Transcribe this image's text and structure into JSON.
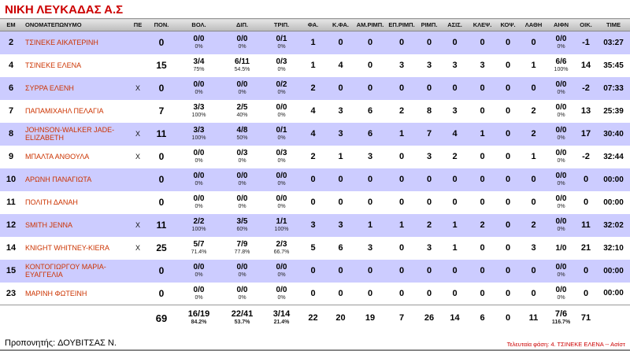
{
  "team": {
    "title": "ΝΙΚΗ ΛΕΥΚΑΔΑΣ Α.Σ"
  },
  "colors": {
    "title_red": "#cc0000",
    "player_name_red": "#cc3300",
    "row_alt_lavender": "#ccccff",
    "header_gray": "#c4c4c4"
  },
  "table": {
    "headers": [
      "ΕΜ",
      "ΟΝΟΜΑΤΕΠΩΝΥΜΟ",
      "ΠΕ",
      "ΠΟΝ.",
      "ΒΟΛ.",
      "ΔΙΠ.",
      "ΤΡΙΠ.",
      "ΦΑ.",
      "Κ.ΦΑ.",
      "ΑΜ.ΡΙΜΠ.",
      "ΕΠ.ΡΙΜΠ.",
      "ΡΙΜΠ.",
      "ΑΣΙΣ.",
      "ΚΛΕΨ.",
      "ΚΟΨ.",
      "ΛΑΘΗ",
      "ΑΙΦΝ",
      "ΟΙΚ.",
      "TIME"
    ],
    "rows": [
      {
        "em": "2",
        "name": "ΤΣΙΝΕΚΕ ΑΙΚΑΤΕΡΙΝΗ",
        "pe": "",
        "pon": "0",
        "vol": [
          "0/0",
          "0%"
        ],
        "dip": [
          "0/0",
          "0%"
        ],
        "trip": [
          "0/1",
          "0%"
        ],
        "fa": "1",
        "kfa": "0",
        "amr": "0",
        "epr": "0",
        "rimp": "0",
        "asis": "0",
        "kleps": "0",
        "kops": "0",
        "lathi": "0",
        "aifn": [
          "0/0",
          "0%"
        ],
        "oik": "-1",
        "time": "03:27"
      },
      {
        "em": "4",
        "name": "ΤΣΙΝΕΚΕ ΕΛΕΝΑ",
        "pe": "",
        "pon": "15",
        "vol": [
          "3/4",
          "75%"
        ],
        "dip": [
          "6/11",
          "54.5%"
        ],
        "trip": [
          "0/3",
          "0%"
        ],
        "fa": "1",
        "kfa": "4",
        "amr": "0",
        "epr": "3",
        "rimp": "3",
        "asis": "3",
        "kleps": "3",
        "kops": "0",
        "lathi": "1",
        "aifn": [
          "6/6",
          "100%"
        ],
        "oik": "14",
        "time": "35:45"
      },
      {
        "em": "6",
        "name": "ΣΥΡΡΑ ΕΛΕΝΗ",
        "pe": "X",
        "pon": "0",
        "vol": [
          "0/0",
          "0%"
        ],
        "dip": [
          "0/0",
          "0%"
        ],
        "trip": [
          "0/2",
          "0%"
        ],
        "fa": "2",
        "kfa": "0",
        "amr": "0",
        "epr": "0",
        "rimp": "0",
        "asis": "0",
        "kleps": "0",
        "kops": "0",
        "lathi": "0",
        "aifn": [
          "0/0",
          "0%"
        ],
        "oik": "-2",
        "time": "07:33"
      },
      {
        "em": "7",
        "name": "ΠΑΠΑΜΙΧΑΗΛ ΠΕΛΑΓΙΑ",
        "pe": "",
        "pon": "7",
        "vol": [
          "3/3",
          "100%"
        ],
        "dip": [
          "2/5",
          "40%"
        ],
        "trip": [
          "0/0",
          "0%"
        ],
        "fa": "4",
        "kfa": "3",
        "amr": "6",
        "epr": "2",
        "rimp": "8",
        "asis": "3",
        "kleps": "0",
        "kops": "0",
        "lathi": "2",
        "aifn": [
          "0/0",
          "0%"
        ],
        "oik": "13",
        "time": "25:39"
      },
      {
        "em": "8",
        "name": "JOHNSON-WALKER JADE-ELIZABETH",
        "pe": "X",
        "pon": "11",
        "vol": [
          "3/3",
          "100%"
        ],
        "dip": [
          "4/8",
          "50%"
        ],
        "trip": [
          "0/1",
          "0%"
        ],
        "fa": "4",
        "kfa": "3",
        "amr": "6",
        "epr": "1",
        "rimp": "7",
        "asis": "4",
        "kleps": "1",
        "kops": "0",
        "lathi": "2",
        "aifn": [
          "0/0",
          "0%"
        ],
        "oik": "17",
        "time": "30:40"
      },
      {
        "em": "9",
        "name": "ΜΠΑΛΤΑ ΑΝΘΟΥΛΑ",
        "pe": "X",
        "pon": "0",
        "vol": [
          "0/0",
          "0%"
        ],
        "dip": [
          "0/3",
          "0%"
        ],
        "trip": [
          "0/3",
          "0%"
        ],
        "fa": "2",
        "kfa": "1",
        "amr": "3",
        "epr": "0",
        "rimp": "3",
        "asis": "2",
        "kleps": "0",
        "kops": "0",
        "lathi": "1",
        "aifn": [
          "0/0",
          "0%"
        ],
        "oik": "-2",
        "time": "32:44"
      },
      {
        "em": "10",
        "name": "ΑΡΩΝΗ ΠΑΝΑΓΙΩΤΑ",
        "pe": "",
        "pon": "0",
        "vol": [
          "0/0",
          "0%"
        ],
        "dip": [
          "0/0",
          "0%"
        ],
        "trip": [
          "0/0",
          "0%"
        ],
        "fa": "0",
        "kfa": "0",
        "amr": "0",
        "epr": "0",
        "rimp": "0",
        "asis": "0",
        "kleps": "0",
        "kops": "0",
        "lathi": "0",
        "aifn": [
          "0/0",
          "0%"
        ],
        "oik": "0",
        "time": "00:00"
      },
      {
        "em": "11",
        "name": "ΠΟΛΙΤΗ ΔΑΝΑΗ",
        "pe": "",
        "pon": "0",
        "vol": [
          "0/0",
          "0%"
        ],
        "dip": [
          "0/0",
          "0%"
        ],
        "trip": [
          "0/0",
          "0%"
        ],
        "fa": "0",
        "kfa": "0",
        "amr": "0",
        "epr": "0",
        "rimp": "0",
        "asis": "0",
        "kleps": "0",
        "kops": "0",
        "lathi": "0",
        "aifn": [
          "0/0",
          "0%"
        ],
        "oik": "0",
        "time": "00:00"
      },
      {
        "em": "12",
        "name": "SMITH JENNA",
        "pe": "X",
        "pon": "11",
        "vol": [
          "2/2",
          "100%"
        ],
        "dip": [
          "3/5",
          "60%"
        ],
        "trip": [
          "1/1",
          "100%"
        ],
        "fa": "3",
        "kfa": "3",
        "amr": "1",
        "epr": "1",
        "rimp": "2",
        "asis": "1",
        "kleps": "2",
        "kops": "0",
        "lathi": "2",
        "aifn": [
          "0/0",
          "0%"
        ],
        "oik": "11",
        "time": "32:02"
      },
      {
        "em": "14",
        "name": "KNIGHT WHITNEY-KIERA",
        "pe": "X",
        "pon": "25",
        "vol": [
          "5/7",
          "71.4%"
        ],
        "dip": [
          "7/9",
          "77.8%"
        ],
        "trip": [
          "2/3",
          "66.7%"
        ],
        "fa": "5",
        "kfa": "6",
        "amr": "3",
        "epr": "0",
        "rimp": "3",
        "asis": "1",
        "kleps": "0",
        "kops": "0",
        "lathi": "3",
        "aifn": [
          "1/0",
          ""
        ],
        "oik": "21",
        "time": "32:10"
      },
      {
        "em": "15",
        "name": "ΚΟΝΤΟΓΙΩΡΓΟΥ ΜΑΡΙΑ-ΕΥΑΓΓΕΛΙΑ",
        "pe": "",
        "pon": "0",
        "vol": [
          "0/0",
          "0%"
        ],
        "dip": [
          "0/0",
          "0%"
        ],
        "trip": [
          "0/0",
          "0%"
        ],
        "fa": "0",
        "kfa": "0",
        "amr": "0",
        "epr": "0",
        "rimp": "0",
        "asis": "0",
        "kleps": "0",
        "kops": "0",
        "lathi": "0",
        "aifn": [
          "0/0",
          "0%"
        ],
        "oik": "0",
        "time": "00:00"
      },
      {
        "em": "23",
        "name": "ΜΑΡΙΝΗ ΦΩΤΕΙΝΗ",
        "pe": "",
        "pon": "0",
        "vol": [
          "0/0",
          "0%"
        ],
        "dip": [
          "0/0",
          "0%"
        ],
        "trip": [
          "0/0",
          "0%"
        ],
        "fa": "0",
        "kfa": "0",
        "amr": "0",
        "epr": "0",
        "rimp": "0",
        "asis": "0",
        "kleps": "0",
        "kops": "0",
        "lathi": "0",
        "aifn": [
          "0/0",
          "0%"
        ],
        "oik": "0",
        "time": "00:00"
      }
    ],
    "totals": {
      "pon": "69",
      "vol": [
        "16/19",
        "84.2%"
      ],
      "dip": [
        "22/41",
        "53.7%"
      ],
      "trip": [
        "3/14",
        "21.4%"
      ],
      "fa": "22",
      "kfa": "20",
      "amr": "19",
      "epr": "7",
      "rimp": "26",
      "asis": "14",
      "kleps": "6",
      "kops": "0",
      "lathi": "11",
      "aifn": [
        "7/6",
        "116.7%"
      ],
      "oik": "71",
      "time": ""
    }
  },
  "footer": {
    "coach_label": "Προπονητής:",
    "coach_name": "ΔΟΥΒΙΤΣΑΣ Ν.",
    "last_play": "Τελευταία φάση: 4. ΤΣΙΝΕΚΕ ΕΛΕΝΑ -- Ασίστ"
  }
}
